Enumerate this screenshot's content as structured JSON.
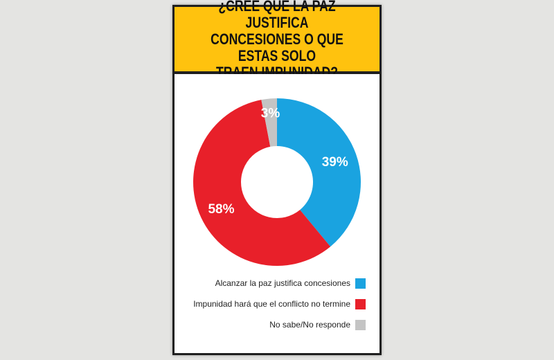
{
  "header": {
    "title": "¿CREE QUE LA PAZ JUSTIFICA\nCONCESIONES O QUE ESTAS SOLO\nTRAEN IMPUNIDAD?"
  },
  "chart_data": {
    "type": "pie",
    "title": "¿CREE QUE LA PAZ JUSTIFICA CONCESIONES O QUE ESTAS SOLO TRAEN IMPUNIDAD?",
    "series": [
      {
        "name": "Alcanzar la paz justifica concesiones",
        "value": 39,
        "label": "39%",
        "color": "#1aa3e0"
      },
      {
        "name": "Impunidad hará que el conflicto no termine",
        "value": 58,
        "label": "58%",
        "color": "#e8202a"
      },
      {
        "name": "No sabe/No responde",
        "value": 3,
        "label": "3%",
        "color": "#c4c4c4"
      }
    ],
    "donut": true,
    "legend_position": "bottom-right"
  }
}
